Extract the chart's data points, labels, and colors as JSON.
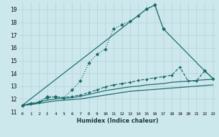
{
  "xlabel": "Humidex (Indice chaleur)",
  "xlim": [
    -0.5,
    23.5
  ],
  "ylim": [
    11.0,
    19.6
  ],
  "yticks": [
    11,
    12,
    13,
    14,
    15,
    16,
    17,
    18,
    19
  ],
  "xticks": [
    0,
    1,
    2,
    3,
    4,
    5,
    6,
    7,
    8,
    9,
    10,
    11,
    12,
    13,
    14,
    15,
    16,
    17,
    18,
    19,
    20,
    21,
    22,
    23
  ],
  "bg_color": "#cde8ed",
  "grid_color": "#b2d0d8",
  "line_color": "#1a6b6b",
  "series": [
    {
      "x": [
        0,
        1,
        2,
        3,
        4,
        5,
        6,
        7,
        8,
        9,
        10,
        11,
        12,
        13,
        14,
        15,
        16,
        17
      ],
      "y": [
        11.5,
        11.65,
        11.75,
        12.2,
        12.2,
        12.1,
        12.7,
        13.4,
        14.8,
        15.5,
        15.9,
        17.5,
        17.8,
        18.1,
        18.5,
        19.05,
        19.35,
        17.5
      ],
      "marker": "D",
      "markersize": 2.5,
      "linewidth": 0.9,
      "linestyle": ":"
    },
    {
      "x": [
        0,
        15,
        16,
        17,
        22,
        23
      ],
      "y": [
        11.5,
        19.05,
        19.35,
        17.5,
        14.2,
        13.6
      ],
      "marker": "D",
      "markersize": 2.5,
      "linewidth": 0.9,
      "linestyle": "-"
    },
    {
      "x": [
        0,
        1,
        2,
        3,
        4,
        5,
        6,
        7,
        8,
        9,
        10,
        11,
        12,
        13,
        14,
        15,
        16,
        17,
        18,
        19,
        20,
        21,
        22,
        23
      ],
      "y": [
        11.5,
        11.65,
        11.75,
        12.1,
        12.15,
        12.1,
        12.2,
        12.3,
        12.5,
        12.7,
        12.95,
        13.1,
        13.2,
        13.3,
        13.45,
        13.55,
        13.65,
        13.75,
        13.85,
        14.5,
        13.4,
        13.4,
        14.2,
        13.6
      ],
      "marker": "D",
      "markersize": 2.0,
      "linewidth": 0.9,
      "linestyle": "--"
    },
    {
      "x": [
        0,
        1,
        2,
        3,
        4,
        5,
        6,
        7,
        8,
        9,
        10,
        11,
        12,
        13,
        14,
        15,
        16,
        17,
        18,
        19,
        20,
        21,
        22,
        23
      ],
      "y": [
        11.5,
        11.6,
        11.75,
        11.9,
        12.0,
        12.05,
        12.1,
        12.2,
        12.35,
        12.5,
        12.65,
        12.75,
        12.85,
        12.95,
        13.0,
        13.1,
        13.15,
        13.2,
        13.3,
        13.35,
        13.4,
        13.45,
        13.5,
        13.55
      ],
      "marker": null,
      "markersize": 0,
      "linewidth": 0.9,
      "linestyle": "-"
    },
    {
      "x": [
        0,
        1,
        2,
        3,
        4,
        5,
        6,
        7,
        8,
        9,
        10,
        11,
        12,
        13,
        14,
        15,
        16,
        17,
        18,
        19,
        20,
        21,
        22,
        23
      ],
      "y": [
        11.5,
        11.55,
        11.65,
        11.75,
        11.85,
        11.9,
        11.95,
        12.0,
        12.1,
        12.2,
        12.3,
        12.4,
        12.5,
        12.6,
        12.65,
        12.7,
        12.75,
        12.8,
        12.85,
        12.9,
        12.95,
        13.0,
        13.05,
        13.1
      ],
      "marker": null,
      "markersize": 0,
      "linewidth": 0.9,
      "linestyle": "-"
    }
  ]
}
